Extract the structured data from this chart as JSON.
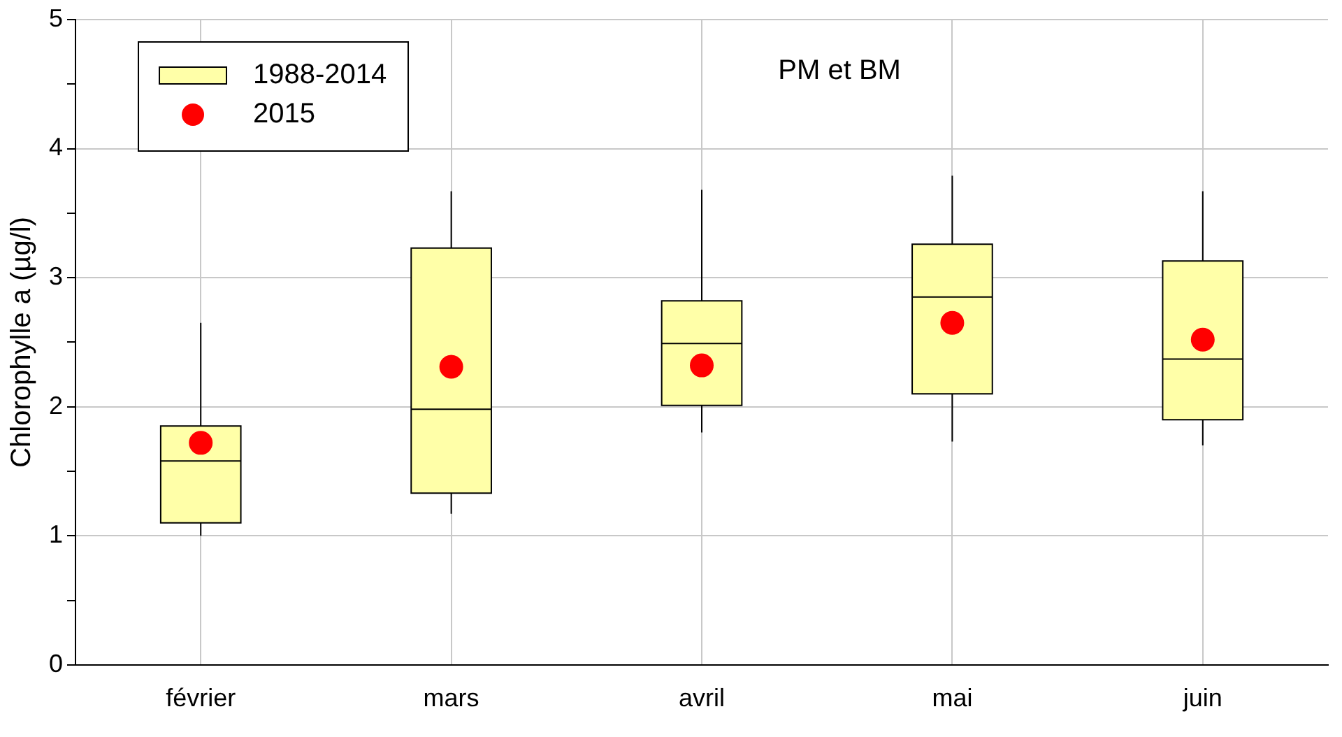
{
  "chart_data": {
    "type": "box",
    "annotations": [
      "PM et BM"
    ],
    "ylabel": "Chlorophylle a (µg/l)",
    "categories": [
      "février",
      "mars",
      "avril",
      "mai",
      "juin"
    ],
    "ylim": [
      0,
      5
    ],
    "yticks": [
      0,
      {
        "value": 0.5,
        "label": null
      },
      1,
      {
        "value": 1.5,
        "label": null
      },
      2,
      {
        "value": 2.5,
        "label": null
      },
      3,
      {
        "value": 3.5,
        "label": null
      },
      4,
      {
        "value": 4.5,
        "label": null
      },
      5
    ],
    "grid": true,
    "legend": "top left",
    "series": [
      {
        "name": "1988-2014",
        "color": "#ffffa8",
        "boxes": [
          {
            "low": 1.0,
            "q1": 1.1,
            "median": 1.58,
            "q3": 1.85,
            "high": 2.65
          },
          {
            "low": 1.17,
            "q1": 1.33,
            "median": 1.98,
            "q3": 3.23,
            "high": 3.67
          },
          {
            "low": 1.8,
            "q1": 2.01,
            "median": 2.49,
            "q3": 2.82,
            "high": 3.68
          },
          {
            "low": 1.73,
            "q1": 2.1,
            "median": 2.85,
            "q3": 3.26,
            "high": 3.79
          },
          {
            "low": 1.7,
            "q1": 1.9,
            "median": 2.37,
            "q3": 3.13,
            "high": 3.67
          }
        ]
      },
      {
        "name": "2015",
        "type": "scatter",
        "color": "#ff0000",
        "marker": "circle",
        "x": [
          "février",
          "mars",
          "avril",
          "mai",
          "juin"
        ],
        "values": [
          1.72,
          2.31,
          2.32,
          2.65,
          2.52
        ]
      }
    ]
  }
}
